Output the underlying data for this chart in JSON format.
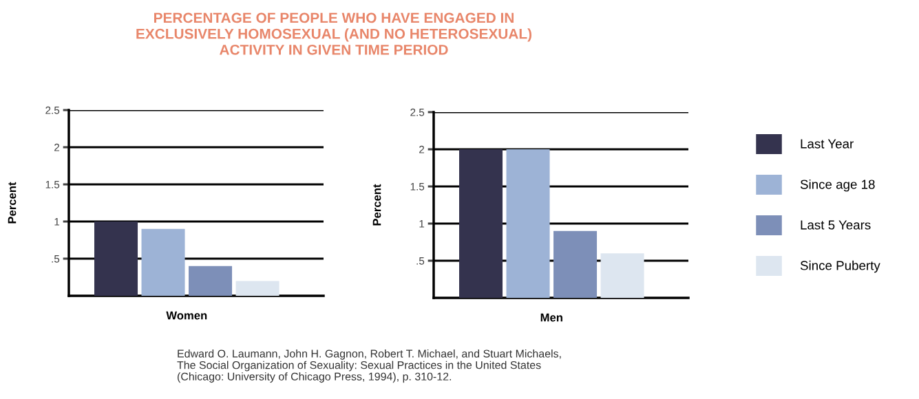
{
  "chart_data": [
    {
      "type": "bar",
      "title": "PERCENTAGE OF PEOPLE WHO HAVE ENGAGED IN\nEXCLUSIVELY HOMOSEXUAL (AND NO HETEROSEXUAL)\nACTIVITY IN GIVEN TIME PERIOD",
      "ylabel": "Percent",
      "categories": [
        "Women"
      ],
      "series": [
        {
          "color": "#34334e",
          "values": [
            1.0
          ]
        },
        {
          "color": "#9db3d6",
          "values": [
            0.9
          ]
        },
        {
          "color": "#7d8fb8",
          "values": [
            0.4
          ]
        },
        {
          "color": "#dde6f0",
          "values": [
            0.2
          ]
        }
      ],
      "ylim": [
        0,
        2.5
      ],
      "yticks": [
        {
          "value": 0.5,
          "label": ".5"
        },
        1,
        1.5,
        2,
        2.5
      ],
      "grid": "y",
      "annotations": [
        "Edward O. Laumann, John H. Gagnon, Robert T. Michael, and Stuart Michaels,\nThe Social Organization of Sexuality: Sexual Practices in the United States\n(Chicago: University of Chicago Press, 1994), p. 310-12."
      ]
    },
    {
      "type": "bar",
      "ylabel": "Percent",
      "categories": [
        "Men"
      ],
      "series": [
        {
          "name": "Last Year",
          "color": "#34334e",
          "values": [
            2.0
          ]
        },
        {
          "name": "Since age 18",
          "color": "#9db3d6",
          "values": [
            2.0
          ]
        },
        {
          "name": "Last 5 Years",
          "color": "#7d8fb8",
          "values": [
            0.9
          ]
        },
        {
          "name": "Since Puberty",
          "color": "#dde6f0",
          "values": [
            0.6
          ]
        }
      ],
      "ylim": [
        0,
        2.5
      ],
      "yticks": [
        {
          "value": 0.5,
          "label": ".5"
        },
        1,
        1.5,
        2,
        2.5
      ],
      "grid": "y",
      "legend": "right"
    }
  ]
}
